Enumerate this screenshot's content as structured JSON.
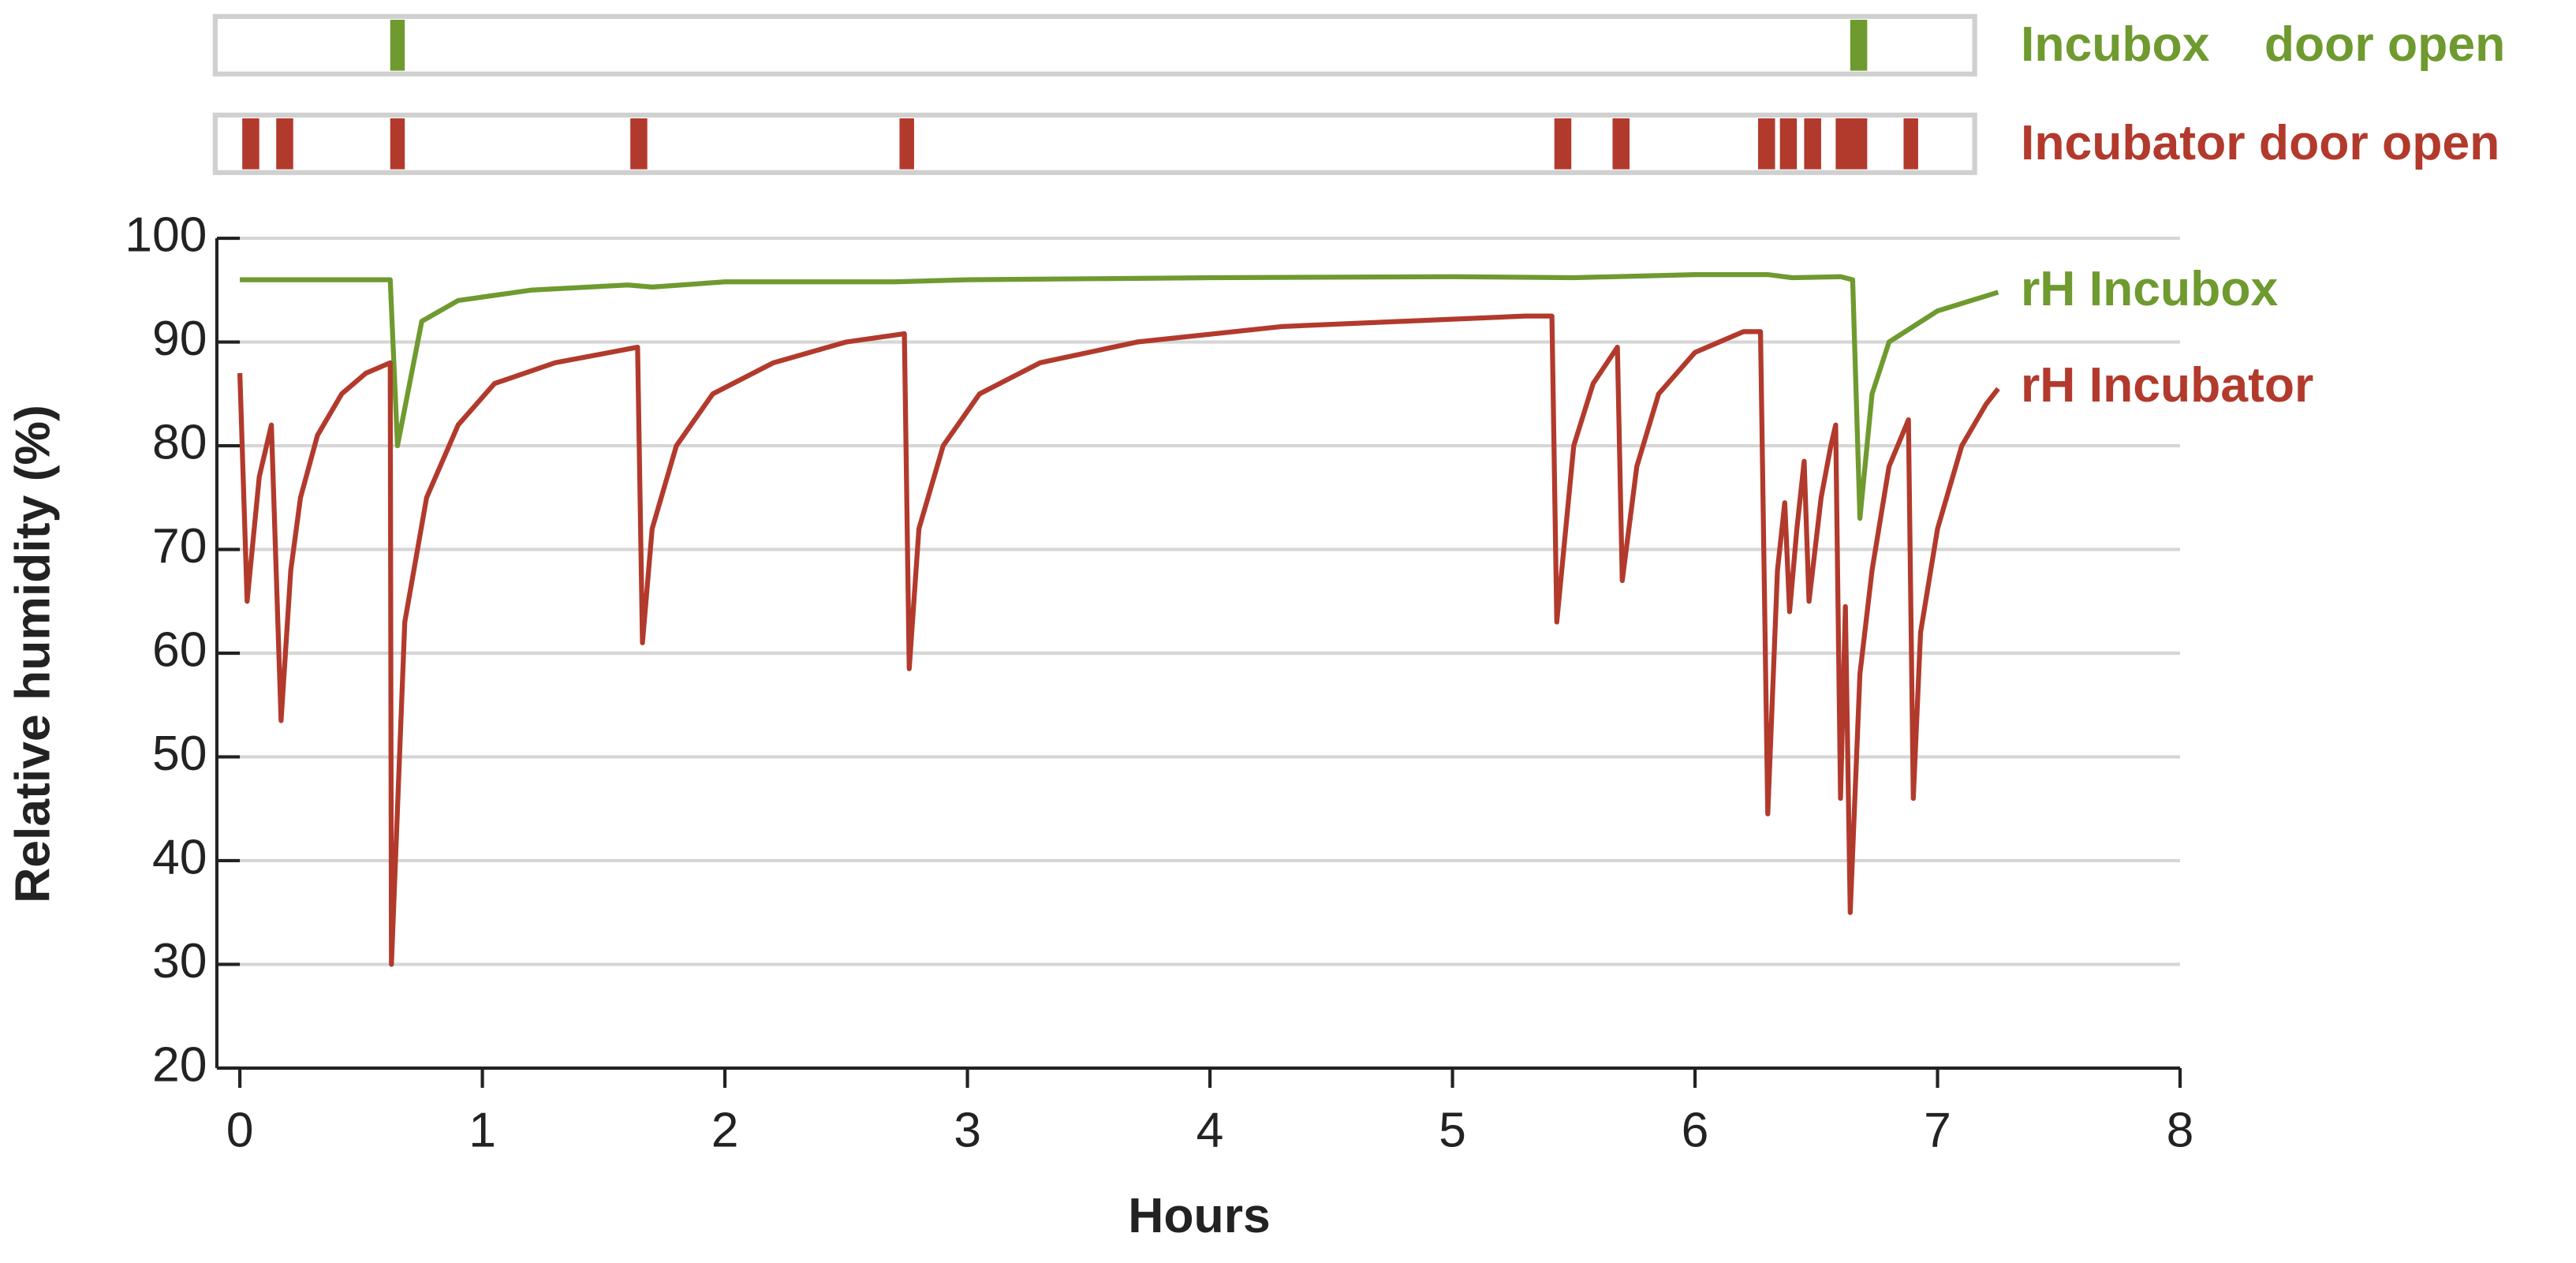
{
  "chart_data": {
    "type": "line",
    "x_label": "Hours",
    "y_label": "Relative humidity (%)",
    "xlim": [
      0,
      8
    ],
    "xticks": [
      0,
      1,
      2,
      3,
      4,
      5,
      6,
      7,
      8
    ],
    "ylim": [
      20,
      100
    ],
    "yticks": [
      20,
      30,
      40,
      50,
      60,
      70,
      80,
      90,
      100
    ],
    "grid": true,
    "series": [
      {
        "name": "rH Incubox",
        "color": "#6f9a2f",
        "x": [
          0,
          0.3,
          0.62,
          0.65,
          0.75,
          0.9,
          1.2,
          1.6,
          1.7,
          2,
          2.7,
          3,
          4,
          5,
          5.5,
          6,
          6.3,
          6.4,
          6.6,
          6.65,
          6.68,
          6.73,
          6.8,
          7,
          7.25
        ],
        "values": [
          96,
          96,
          96,
          80,
          92,
          94,
          95,
          95.5,
          95.3,
          95.8,
          95.8,
          96,
          96.2,
          96.3,
          96.2,
          96.5,
          96.5,
          96.2,
          96.3,
          96,
          73,
          85,
          90,
          93,
          94.8
        ]
      },
      {
        "name": "rH Incubator",
        "color": "#b23a2c",
        "x": [
          0,
          0.03,
          0.08,
          0.13,
          0.17,
          0.21,
          0.25,
          0.32,
          0.42,
          0.52,
          0.62,
          0.625,
          0.68,
          0.77,
          0.9,
          1.05,
          1.3,
          1.64,
          1.66,
          1.7,
          1.8,
          1.95,
          2.2,
          2.5,
          2.74,
          2.76,
          2.8,
          2.9,
          3.05,
          3.3,
          3.7,
          4.3,
          4.8,
          5.3,
          5.41,
          5.43,
          5.5,
          5.58,
          5.68,
          5.7,
          5.76,
          5.85,
          6.0,
          6.2,
          6.27,
          6.3,
          6.34,
          6.37,
          6.39,
          6.42,
          6.45,
          6.47,
          6.52,
          6.56,
          6.58,
          6.6,
          6.62,
          6.64,
          6.68,
          6.73,
          6.8,
          6.88,
          6.9,
          6.93,
          7.0,
          7.1,
          7.2,
          7.25
        ],
        "values": [
          87,
          65,
          77,
          82,
          53.5,
          68,
          75,
          81,
          85,
          87,
          88,
          30,
          63,
          75,
          82,
          86,
          88,
          89.5,
          61,
          72,
          80,
          85,
          88,
          90,
          90.8,
          58.5,
          72,
          80,
          85,
          88,
          90,
          91.5,
          92,
          92.5,
          92.5,
          63,
          80,
          86,
          89.5,
          67,
          78,
          85,
          89,
          91,
          91,
          44.5,
          68,
          74.5,
          64,
          72,
          78.5,
          65,
          75,
          80,
          82,
          46,
          64.5,
          35,
          58,
          68,
          78,
          82.5,
          46,
          62,
          72,
          80,
          84,
          85.5
        ]
      }
    ],
    "events": [
      {
        "name": "Incubox    door open",
        "color": "#6f9a2f",
        "x": [
          [
            0.62,
            0.68
          ],
          [
            6.64,
            6.71
          ]
        ]
      },
      {
        "name": "Incubator door open",
        "color": "#b23a2c",
        "x": [
          [
            0.01,
            0.08
          ],
          [
            0.15,
            0.22
          ],
          [
            0.62,
            0.68
          ],
          [
            1.61,
            1.68
          ],
          [
            2.72,
            2.78
          ],
          [
            5.42,
            5.49
          ],
          [
            5.66,
            5.73
          ],
          [
            6.26,
            6.33
          ],
          [
            6.35,
            6.42
          ],
          [
            6.45,
            6.52
          ],
          [
            6.58,
            6.71
          ],
          [
            6.86,
            6.92
          ]
        ]
      }
    ]
  }
}
